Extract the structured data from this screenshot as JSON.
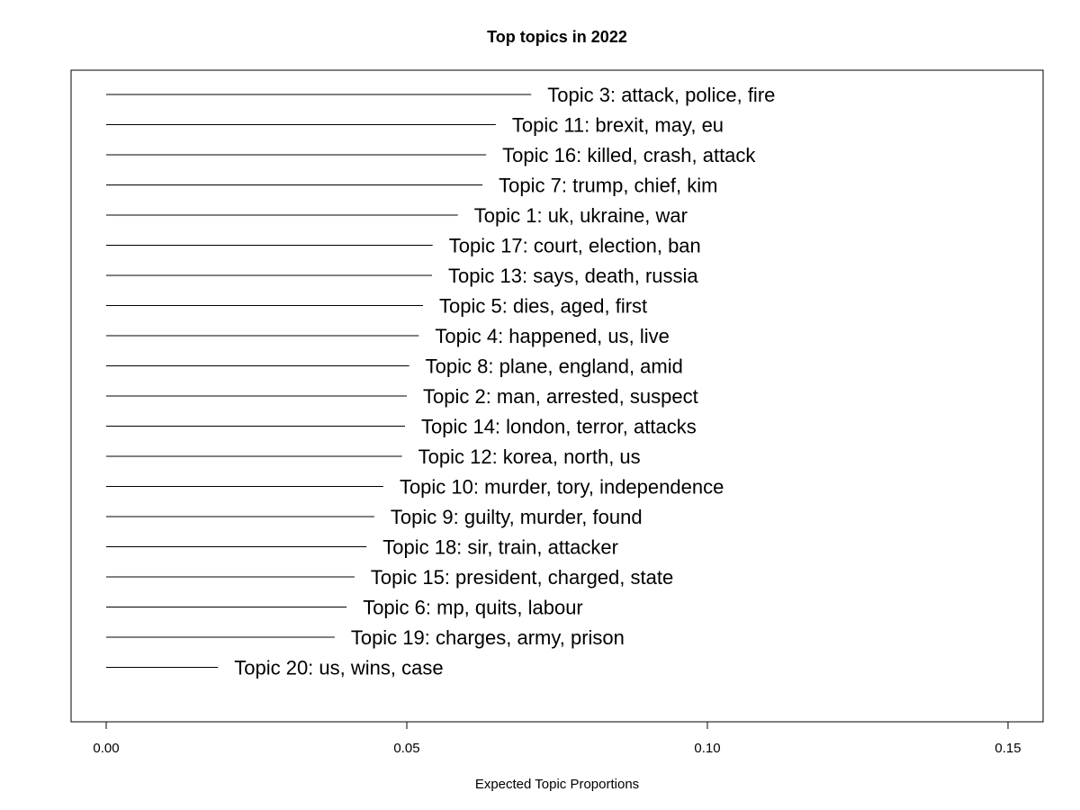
{
  "chart_data": {
    "type": "bar",
    "orientation": "horizontal",
    "title": "Top topics in 2022",
    "xlabel": "Expected Topic Proportions",
    "xlim": [
      0.0,
      0.15
    ],
    "xticks": [
      "0.00",
      "0.05",
      "0.10",
      "0.15"
    ],
    "xtick_values": [
      0.0,
      0.05,
      0.1,
      0.15
    ],
    "grid": false,
    "categories": [
      "Topic 3: attack, police, fire",
      "Topic 11: brexit, may, eu",
      "Topic 16: killed, crash, attack",
      "Topic 7: trump, chief, kim",
      "Topic 1: uk, ukraine, war",
      "Topic 17: court, election, ban",
      "Topic 13: says, death, russia",
      "Topic 5: dies, aged, first",
      "Topic 4: happened, us, live",
      "Topic 8: plane, england, amid",
      "Topic 2: man, arrested, suspect",
      "Topic 14: london, terror, attacks",
      "Topic 12: korea, north, us",
      "Topic 10: murder, tory, independence",
      "Topic 9: guilty, murder, found",
      "Topic 18: sir, train, attacker",
      "Topic 15: president, charged, state",
      "Topic 6: mp, quits, labour",
      "Topic 19: charges, army, prison",
      "Topic 20: us, wins, case"
    ],
    "values": [
      0.0707,
      0.0648,
      0.0632,
      0.0626,
      0.0585,
      0.0543,
      0.0542,
      0.0527,
      0.052,
      0.0504,
      0.05,
      0.0497,
      0.0492,
      0.0461,
      0.0446,
      0.0433,
      0.0413,
      0.04,
      0.038,
      0.0186
    ]
  }
}
